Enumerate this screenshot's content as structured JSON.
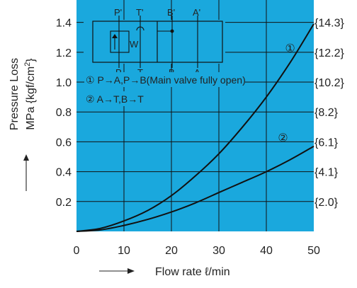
{
  "chart_data": {
    "type": "line",
    "title": "",
    "xlabel": "Flow rate ℓ/min",
    "ylabel": "Pressure Loss MPa {kgf/cm²}",
    "ylabel_line1": "Pressure Loss",
    "ylabel_line2_prefix": "MPa {kgf/cm",
    "ylabel_sup": "2",
    "ylabel_line2_suffix": "}",
    "xlim": [
      0,
      50
    ],
    "ylim": [
      0,
      1.55
    ],
    "grid": true,
    "background_color": "#1aa8dd",
    "line_color": "#111111",
    "x_ticks": [
      "0",
      "10",
      "20",
      "30",
      "40",
      "50"
    ],
    "x_tick_values": [
      0,
      10,
      20,
      30,
      40,
      50
    ],
    "y_ticks": [
      "0.2",
      "0.4",
      "0.6",
      "0.8",
      "1.0",
      "1.2",
      "1.4"
    ],
    "y_tick_values": [
      0.2,
      0.4,
      0.6,
      0.8,
      1.0,
      1.2,
      1.4
    ],
    "y2_ticks": [
      "{2.0}",
      "{4.1}",
      "{6.1}",
      "{8.2}",
      "{10.2}",
      "{12.2}",
      "{14.3}"
    ],
    "y2_tick_values": [
      0.2,
      0.4,
      0.6,
      0.8,
      1.0,
      1.2,
      1.4
    ],
    "series": [
      {
        "label": "①",
        "x": [
          0,
          5,
          10,
          15,
          20,
          25,
          30,
          35,
          40,
          45,
          50
        ],
        "y": [
          0,
          0.02,
          0.07,
          0.14,
          0.24,
          0.37,
          0.52,
          0.7,
          0.9,
          1.13,
          1.39
        ]
      },
      {
        "label": "②",
        "x": [
          0,
          5,
          10,
          15,
          20,
          25,
          30,
          35,
          40,
          45,
          50
        ],
        "y": [
          0,
          0.01,
          0.04,
          0.08,
          0.13,
          0.19,
          0.26,
          0.33,
          0.4,
          0.48,
          0.57
        ]
      }
    ],
    "curve_labels": [
      {
        "text": "①",
        "x": 45,
        "y": 1.23
      },
      {
        "text": "②",
        "x": 43.5,
        "y": 0.63
      }
    ],
    "notes": [
      {
        "marker": "①",
        "text": "P→A,P→B(Main valve fully open)"
      },
      {
        "marker": "②",
        "text": "A→T,B→T"
      }
    ],
    "symbol_labels": {
      "p_top": "P'",
      "t_top": "T'",
      "b_top": "B'",
      "a_top": "A'",
      "p_bottom": "P",
      "t_bottom": "T",
      "b_bottom": "B",
      "a_bottom": "A",
      "w": "W"
    }
  }
}
